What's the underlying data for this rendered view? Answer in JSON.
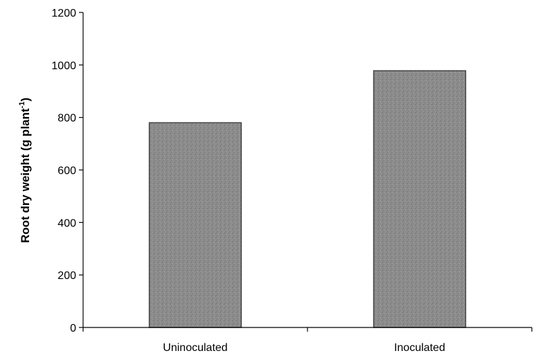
{
  "chart_data": {
    "type": "bar",
    "categories": [
      "Uninoculated",
      "Inoculated"
    ],
    "values": [
      780,
      978
    ],
    "title": "",
    "xlabel": "",
    "ylabel": "Root dry weight (g plant",
    "ylabel_superscript": "-1",
    "ylabel_suffix": ")",
    "ylim": [
      0,
      1200
    ],
    "yticks": [
      "0",
      "200",
      "400",
      "600",
      "800",
      "1000",
      "1200"
    ],
    "grid": false,
    "legend": "none",
    "bar_color": "#8c8c8c"
  }
}
